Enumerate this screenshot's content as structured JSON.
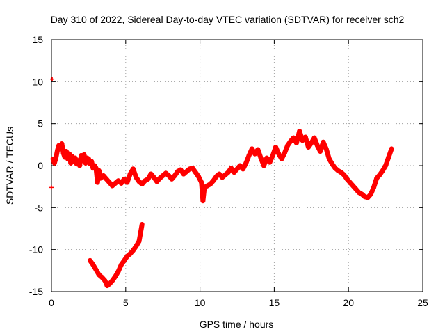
{
  "chart_data": {
    "type": "scatter",
    "title": "Day 310 of 2022, Sidereal Day-to-day VTEC variation (SDTVAR) for receiver sch2",
    "xlabel": "GPS time / hours",
    "ylabel": "SDTVAR / TECUs",
    "xlim": [
      0,
      25
    ],
    "ylim": [
      -15,
      15
    ],
    "xticks": [
      0,
      5,
      10,
      15,
      20,
      25
    ],
    "yticks": [
      -15,
      -10,
      -5,
      0,
      5,
      10,
      15
    ],
    "grid": true,
    "marker_color": "#ff0000",
    "series": [
      {
        "name": "main-trace",
        "points": [
          [
            0.0,
            -2.6
          ],
          [
            0.05,
            10.3
          ],
          [
            0.1,
            0.8
          ],
          [
            0.2,
            0.3
          ],
          [
            0.3,
            0.9
          ],
          [
            0.4,
            1.8
          ],
          [
            0.5,
            2.4
          ],
          [
            0.6,
            2.1
          ],
          [
            0.7,
            2.6
          ],
          [
            0.8,
            1.5
          ],
          [
            0.9,
            1.0
          ],
          [
            1.0,
            1.7
          ],
          [
            1.1,
            0.8
          ],
          [
            1.2,
            1.4
          ],
          [
            1.3,
            0.3
          ],
          [
            1.4,
            1.1
          ],
          [
            1.5,
            0.5
          ],
          [
            1.6,
            0.9
          ],
          [
            1.7,
            0.2
          ],
          [
            1.8,
            0.6
          ],
          [
            1.9,
            0.0
          ],
          [
            2.0,
            1.2
          ],
          [
            2.1,
            0.6
          ],
          [
            2.2,
            1.3
          ],
          [
            2.3,
            0.3
          ],
          [
            2.4,
            0.9
          ],
          [
            2.5,
            0.8
          ],
          [
            2.6,
            0.2
          ],
          [
            2.7,
            0.5
          ],
          [
            2.8,
            -0.3
          ],
          [
            2.9,
            0.0
          ],
          [
            3.0,
            -0.3
          ],
          [
            3.1,
            -2.0
          ],
          [
            3.2,
            -0.6
          ],
          [
            3.3,
            -1.5
          ],
          [
            3.5,
            -1.2
          ],
          [
            3.7,
            -1.6
          ],
          [
            3.9,
            -2.0
          ],
          [
            4.1,
            -2.4
          ],
          [
            4.3,
            -2.1
          ],
          [
            4.5,
            -1.8
          ],
          [
            4.7,
            -2.1
          ],
          [
            4.9,
            -1.6
          ],
          [
            5.1,
            -2.0
          ],
          [
            5.3,
            -1.0
          ],
          [
            5.5,
            -0.4
          ],
          [
            5.7,
            -1.4
          ],
          [
            5.9,
            -1.9
          ],
          [
            6.1,
            -2.2
          ],
          [
            6.3,
            -1.8
          ],
          [
            6.5,
            -1.6
          ],
          [
            6.7,
            -1.0
          ],
          [
            6.9,
            -1.4
          ],
          [
            7.1,
            -1.9
          ],
          [
            7.3,
            -1.5
          ],
          [
            7.5,
            -1.2
          ],
          [
            7.7,
            -0.9
          ],
          [
            7.9,
            -1.2
          ],
          [
            8.1,
            -1.6
          ],
          [
            8.3,
            -1.2
          ],
          [
            8.5,
            -0.7
          ],
          [
            8.7,
            -0.5
          ],
          [
            8.9,
            -1.0
          ],
          [
            9.1,
            -0.7
          ],
          [
            9.3,
            -0.4
          ],
          [
            9.5,
            -0.3
          ],
          [
            9.7,
            -0.8
          ],
          [
            9.9,
            -1.3
          ],
          [
            10.1,
            -2.0
          ],
          [
            10.2,
            -4.2
          ],
          [
            10.3,
            -2.6
          ],
          [
            10.5,
            -2.4
          ],
          [
            10.7,
            -2.2
          ],
          [
            10.9,
            -1.8
          ],
          [
            11.1,
            -1.3
          ],
          [
            11.3,
            -1.0
          ],
          [
            11.5,
            -1.4
          ],
          [
            11.7,
            -1.1
          ],
          [
            11.9,
            -0.8
          ],
          [
            12.1,
            -0.3
          ],
          [
            12.3,
            -0.8
          ],
          [
            12.5,
            -0.4
          ],
          [
            12.7,
            0.0
          ],
          [
            12.9,
            -0.4
          ],
          [
            13.1,
            0.3
          ],
          [
            13.3,
            1.2
          ],
          [
            13.5,
            2.0
          ],
          [
            13.7,
            1.4
          ],
          [
            13.9,
            1.9
          ],
          [
            14.1,
            0.9
          ],
          [
            14.3,
            0.0
          ],
          [
            14.5,
            0.9
          ],
          [
            14.7,
            0.4
          ],
          [
            14.9,
            1.2
          ],
          [
            15.1,
            2.2
          ],
          [
            15.3,
            1.4
          ],
          [
            15.5,
            0.8
          ],
          [
            15.7,
            1.5
          ],
          [
            15.9,
            2.4
          ],
          [
            16.1,
            2.9
          ],
          [
            16.3,
            3.3
          ],
          [
            16.5,
            2.7
          ],
          [
            16.7,
            4.1
          ],
          [
            16.9,
            3.0
          ],
          [
            17.1,
            3.4
          ],
          [
            17.3,
            2.2
          ],
          [
            17.5,
            2.7
          ],
          [
            17.7,
            3.3
          ],
          [
            17.9,
            2.4
          ],
          [
            18.1,
            1.7
          ],
          [
            18.3,
            2.8
          ],
          [
            18.5,
            2.0
          ],
          [
            18.7,
            0.8
          ],
          [
            18.9,
            0.2
          ],
          [
            19.1,
            -0.3
          ],
          [
            19.3,
            -0.6
          ],
          [
            19.5,
            -0.8
          ],
          [
            19.7,
            -1.1
          ],
          [
            19.9,
            -1.6
          ],
          [
            20.1,
            -2.0
          ],
          [
            20.3,
            -2.4
          ],
          [
            20.5,
            -2.8
          ],
          [
            20.7,
            -3.2
          ],
          [
            20.9,
            -3.4
          ],
          [
            21.1,
            -3.7
          ],
          [
            21.3,
            -3.8
          ],
          [
            21.5,
            -3.4
          ],
          [
            21.7,
            -2.6
          ],
          [
            21.9,
            -1.5
          ],
          [
            22.1,
            -1.1
          ],
          [
            22.3,
            -0.6
          ],
          [
            22.5,
            0.0
          ],
          [
            22.7,
            1.0
          ],
          [
            22.9,
            2.0
          ]
        ]
      },
      {
        "name": "secondary-trace",
        "points": [
          [
            2.6,
            -11.3
          ],
          [
            2.8,
            -11.8
          ],
          [
            3.0,
            -12.4
          ],
          [
            3.2,
            -13.0
          ],
          [
            3.4,
            -13.3
          ],
          [
            3.6,
            -13.7
          ],
          [
            3.75,
            -14.3
          ],
          [
            3.9,
            -14.1
          ],
          [
            4.1,
            -13.7
          ],
          [
            4.3,
            -13.2
          ],
          [
            4.5,
            -12.6
          ],
          [
            4.7,
            -11.8
          ],
          [
            4.9,
            -11.3
          ],
          [
            5.1,
            -10.8
          ],
          [
            5.3,
            -10.5
          ],
          [
            5.5,
            -10.1
          ],
          [
            5.7,
            -9.6
          ],
          [
            5.9,
            -9.0
          ],
          [
            6.0,
            -8.0
          ],
          [
            6.1,
            -7.0
          ]
        ]
      }
    ]
  }
}
